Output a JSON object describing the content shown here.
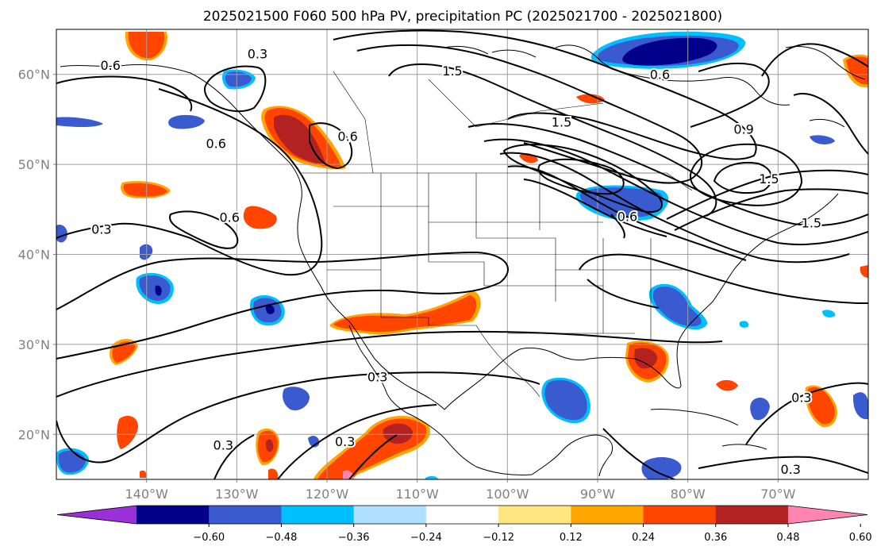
{
  "title": "2025021500 F060 500 hPa PV, precipitation PC (2025021700 - 2025021800)",
  "map": {
    "lon_range": [
      -150,
      -60
    ],
    "lat_range": [
      15,
      65
    ],
    "lon_ticks": [
      {
        "lon": -140,
        "label": "140°W"
      },
      {
        "lon": -130,
        "label": "130°W"
      },
      {
        "lon": -120,
        "label": "120°W"
      },
      {
        "lon": -110,
        "label": "110°W"
      },
      {
        "lon": -100,
        "label": "100°W"
      },
      {
        "lon": -90,
        "label": "90°W"
      },
      {
        "lon": -80,
        "label": "80°W"
      },
      {
        "lon": -70,
        "label": "70°W"
      }
    ],
    "lat_ticks": [
      {
        "lat": 60,
        "label": "60°N"
      },
      {
        "lat": 50,
        "label": "50°N"
      },
      {
        "lat": 40,
        "label": "40°N"
      },
      {
        "lat": 30,
        "label": "30°N"
      },
      {
        "lat": 20,
        "label": "20°N"
      }
    ],
    "gridlines": true
  },
  "contour_labels": [
    {
      "text": "0.3",
      "lon": -127.7,
      "lat": 62.2
    },
    {
      "text": "0.6",
      "lon": -144.0,
      "lat": 60.9
    },
    {
      "text": "0.6",
      "lon": -132.3,
      "lat": 52.2
    },
    {
      "text": "0.6",
      "lon": -117.7,
      "lat": 53.0
    },
    {
      "text": "0.3",
      "lon": -145.0,
      "lat": 42.7
    },
    {
      "text": "0.6",
      "lon": -130.8,
      "lat": 44.0
    },
    {
      "text": "1.5",
      "lon": -106.1,
      "lat": 60.3
    },
    {
      "text": "1.5",
      "lon": -94.0,
      "lat": 54.6
    },
    {
      "text": "0.6",
      "lon": -83.1,
      "lat": 59.9
    },
    {
      "text": "0.6",
      "lon": -86.7,
      "lat": 44.1
    },
    {
      "text": "0.9",
      "lon": -73.8,
      "lat": 53.8
    },
    {
      "text": "1.5",
      "lon": -71.0,
      "lat": 48.3
    },
    {
      "text": "1.5",
      "lon": -66.3,
      "lat": 43.4
    },
    {
      "text": "0.3",
      "lon": -114.4,
      "lat": 26.3
    },
    {
      "text": "0.3",
      "lon": -131.5,
      "lat": 18.7
    },
    {
      "text": "0.3",
      "lon": -118.0,
      "lat": 19.1
    },
    {
      "text": "0.3",
      "lon": -68.6,
      "lat": 16.0
    },
    {
      "text": "0.3",
      "lon": -67.4,
      "lat": 24.0
    }
  ],
  "colorbar": {
    "colors": [
      "#9b30d9",
      "#00008b",
      "#3a5ad0",
      "#00bfff",
      "#b0e0ff",
      "#ffffff",
      "#ffe680",
      "#ffa500",
      "#ff4500",
      "#b22222",
      "#ff85b0"
    ],
    "tick_labels": [
      "−0.60",
      "−0.48",
      "−0.36",
      "−0.24",
      "−0.12",
      "0.12",
      "0.24",
      "0.36",
      "0.48",
      "0.60"
    ]
  }
}
